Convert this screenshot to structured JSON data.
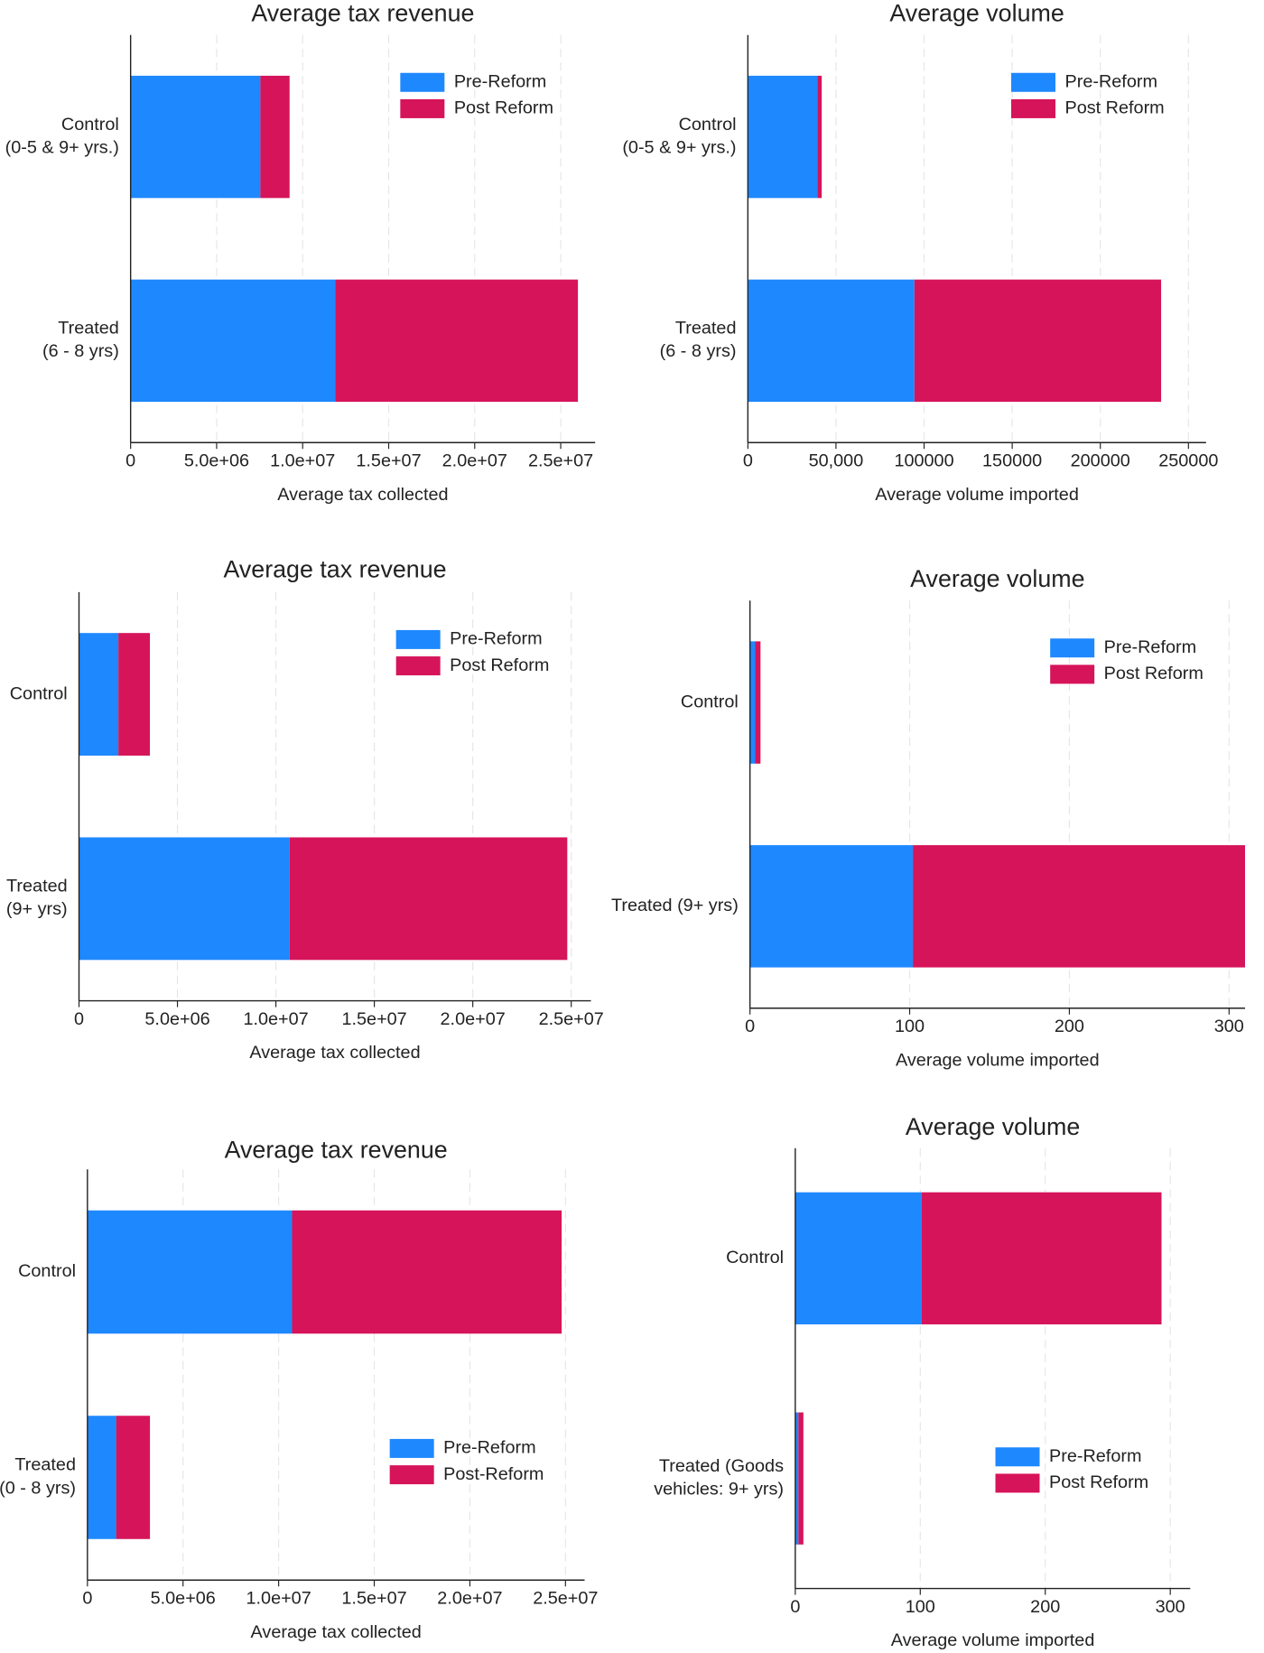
{
  "chart_data": [
    {
      "type": "stacked-barh",
      "title": "Average tax revenue",
      "x_label": "Average tax collected",
      "categories": [
        "Control\n(0-5 & 9+ yrs.)",
        "Treated\n(6 - 8 yrs)"
      ],
      "series": [
        {
          "name": "Pre-Reform",
          "color": "#1e88ff",
          "values": [
            7540000,
            11900000
          ]
        },
        {
          "name": "Post Reform",
          "color": "#d6145a",
          "values": [
            1700000,
            14100000
          ]
        }
      ],
      "xlim": [
        0,
        27000000
      ],
      "xticks": [
        0,
        {
          "value": 5000000,
          "label": "5.0e+06"
        },
        {
          "value": 10000000,
          "label": "1.0e+07"
        },
        {
          "value": 15000000,
          "label": "1.5e+07"
        },
        {
          "value": 20000000,
          "label": "2.0e+07"
        },
        {
          "value": 25000000,
          "label": "2.5e+07"
        }
      ],
      "grid": true,
      "legend_position": "top right"
    },
    {
      "type": "stacked-barh",
      "title": "Average volume",
      "x_label": "Average volume imported",
      "categories": [
        "Control\n(0-5 & 9+ yrs.)",
        "Treated\n(6 - 8 yrs)"
      ],
      "series": [
        {
          "name": "Pre-Reform",
          "color": "#1e88ff",
          "values": [
            39500,
            94500
          ]
        },
        {
          "name": "Post Reform",
          "color": "#d6145a",
          "values": [
            2400,
            140000
          ]
        }
      ],
      "xlim": [
        0,
        260000
      ],
      "xticks": [
        0,
        {
          "value": 50000,
          "label": "50,000"
        },
        100000,
        150000,
        200000,
        250000
      ],
      "grid": true,
      "legend_position": "top right"
    },
    {
      "type": "stacked-barh",
      "title": "Average tax revenue",
      "x_label": "Average tax collected",
      "categories": [
        "Control",
        "Treated\n(9+ yrs)"
      ],
      "series": [
        {
          "name": "Pre-Reform",
          "color": "#1e88ff",
          "values": [
            2000000,
            10700000
          ]
        },
        {
          "name": "Post Reform",
          "color": "#d6145a",
          "values": [
            1600000,
            14100000
          ]
        }
      ],
      "xlim": [
        0,
        26000000
      ],
      "xticks": [
        0,
        {
          "value": 5000000,
          "label": "5.0e+06"
        },
        {
          "value": 10000000,
          "label": "1.0e+07"
        },
        {
          "value": 15000000,
          "label": "1.5e+07"
        },
        {
          "value": 20000000,
          "label": "2.0e+07"
        },
        {
          "value": 25000000,
          "label": "2.5e+07"
        }
      ],
      "grid": true,
      "legend_position": "top right"
    },
    {
      "type": "stacked-barh",
      "title": "Average volume",
      "x_label": "Average volume imported",
      "categories": [
        "Control",
        "Treated (9+ yrs)"
      ],
      "series": [
        {
          "name": "Pre-Reform",
          "color": "#1e88ff",
          "values": [
            3.3,
            102
          ]
        },
        {
          "name": "Post Reform",
          "color": "#d6145a",
          "values": [
            3.3,
            208
          ]
        }
      ],
      "xlim": [
        0,
        310
      ],
      "xticks": [
        0,
        100,
        200,
        300
      ],
      "grid": true,
      "legend_position": "top right"
    },
    {
      "type": "stacked-barh",
      "title": "Average tax revenue",
      "x_label": "Average tax collected",
      "categories": [
        "Control",
        "Treated\n(0 - 8 yrs)"
      ],
      "series": [
        {
          "name": "Pre-Reform",
          "color": "#1e88ff",
          "values": [
            10700000,
            1500000
          ]
        },
        {
          "name": "Post-Reform",
          "color": "#d6145a",
          "values": [
            14100000,
            1770000
          ]
        }
      ],
      "xlim": [
        0,
        26000000
      ],
      "xticks": [
        0,
        {
          "value": 5000000,
          "label": "5.0e+06"
        },
        {
          "value": 10000000,
          "label": "1.0e+07"
        },
        {
          "value": 15000000,
          "label": "1.5e+07"
        },
        {
          "value": 20000000,
          "label": "2.0e+07"
        },
        {
          "value": 25000000,
          "label": "2.5e+07"
        }
      ],
      "grid": true,
      "legend_position": "bottom right"
    },
    {
      "type": "stacked-barh",
      "title": "Average volume",
      "x_label": "Average volume imported",
      "categories": [
        "Control",
        "Treated (Goods\nvehicles: 9+ yrs)"
      ],
      "series": [
        {
          "name": "Pre-Reform",
          "color": "#1e88ff",
          "values": [
            101,
            2.5
          ]
        },
        {
          "name": "Post Reform",
          "color": "#d6145a",
          "values": [
            192,
            4
          ]
        }
      ],
      "xlim": [
        0,
        316
      ],
      "xticks": [
        0,
        100,
        200,
        300
      ],
      "grid": true,
      "legend_position": "bottom right"
    }
  ]
}
